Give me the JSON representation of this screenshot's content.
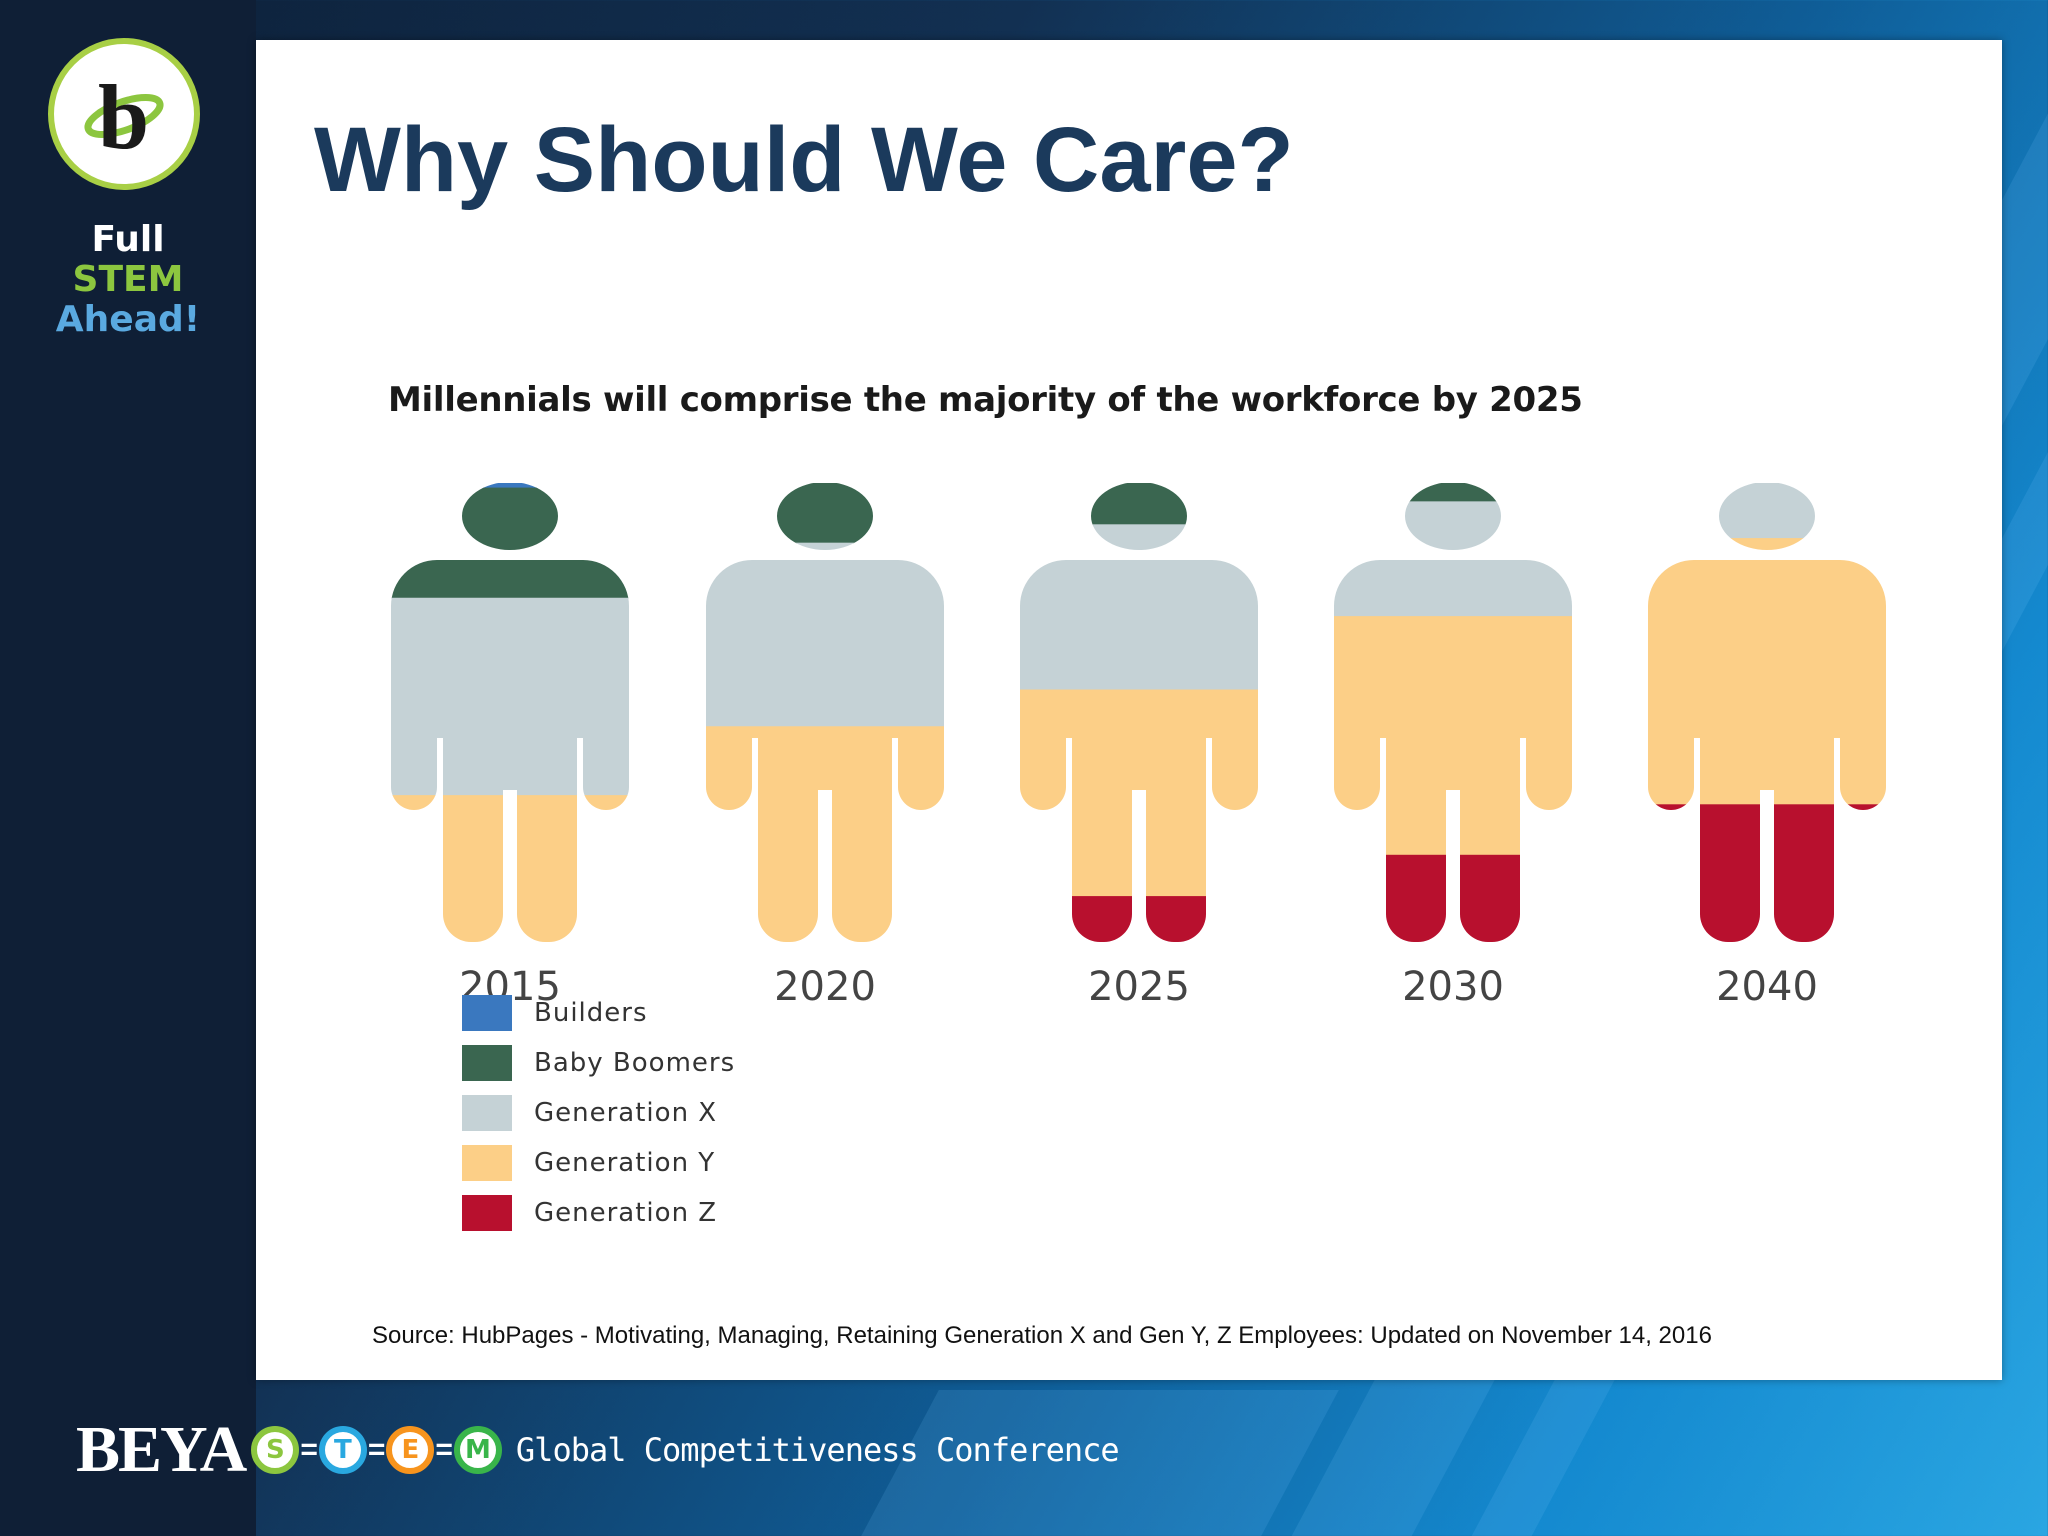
{
  "sidebar": {
    "logo_letter": "b",
    "tagline": [
      "Full",
      "STEM",
      "Ahead!"
    ]
  },
  "slide": {
    "title": "Why Should We Care?",
    "source": "Source: HubPages - Motivating, Managing, Retaining Generation X and Gen Y, Z Employees: Updated on November 14, 2016"
  },
  "chart_data": {
    "type": "pictogram-stacked",
    "title": "Millennials will comprise the majority of the workforce by 2025",
    "categories": [
      "2015",
      "2020",
      "2025",
      "2030",
      "2040"
    ],
    "series": [
      {
        "name": "Builders",
        "color": "#3a78bf",
        "values": [
          1,
          0,
          0,
          0,
          0
        ]
      },
      {
        "name": "Baby Boomers",
        "color": "#3a6650",
        "values": [
          24,
          13,
          9,
          4,
          0
        ]
      },
      {
        "name": "Generation X",
        "color": "#c5d2d6",
        "values": [
          43,
          40,
          36,
          25,
          12
        ]
      },
      {
        "name": "Generation Y",
        "color": "#fccf87",
        "values": [
          32,
          47,
          45,
          52,
          58
        ]
      },
      {
        "name": "Generation Z",
        "color": "#b8102e",
        "values": [
          0,
          0,
          10,
          19,
          30
        ]
      }
    ]
  },
  "footer": {
    "brand": "BEYA",
    "stem_letters": [
      {
        "letter": "S",
        "color": "#8cc63f"
      },
      {
        "letter": "T",
        "color": "#29a8e0"
      },
      {
        "letter": "E",
        "color": "#f7941d"
      },
      {
        "letter": "M",
        "color": "#39b54a"
      }
    ],
    "conference": "Global Competitiveness Conference"
  }
}
